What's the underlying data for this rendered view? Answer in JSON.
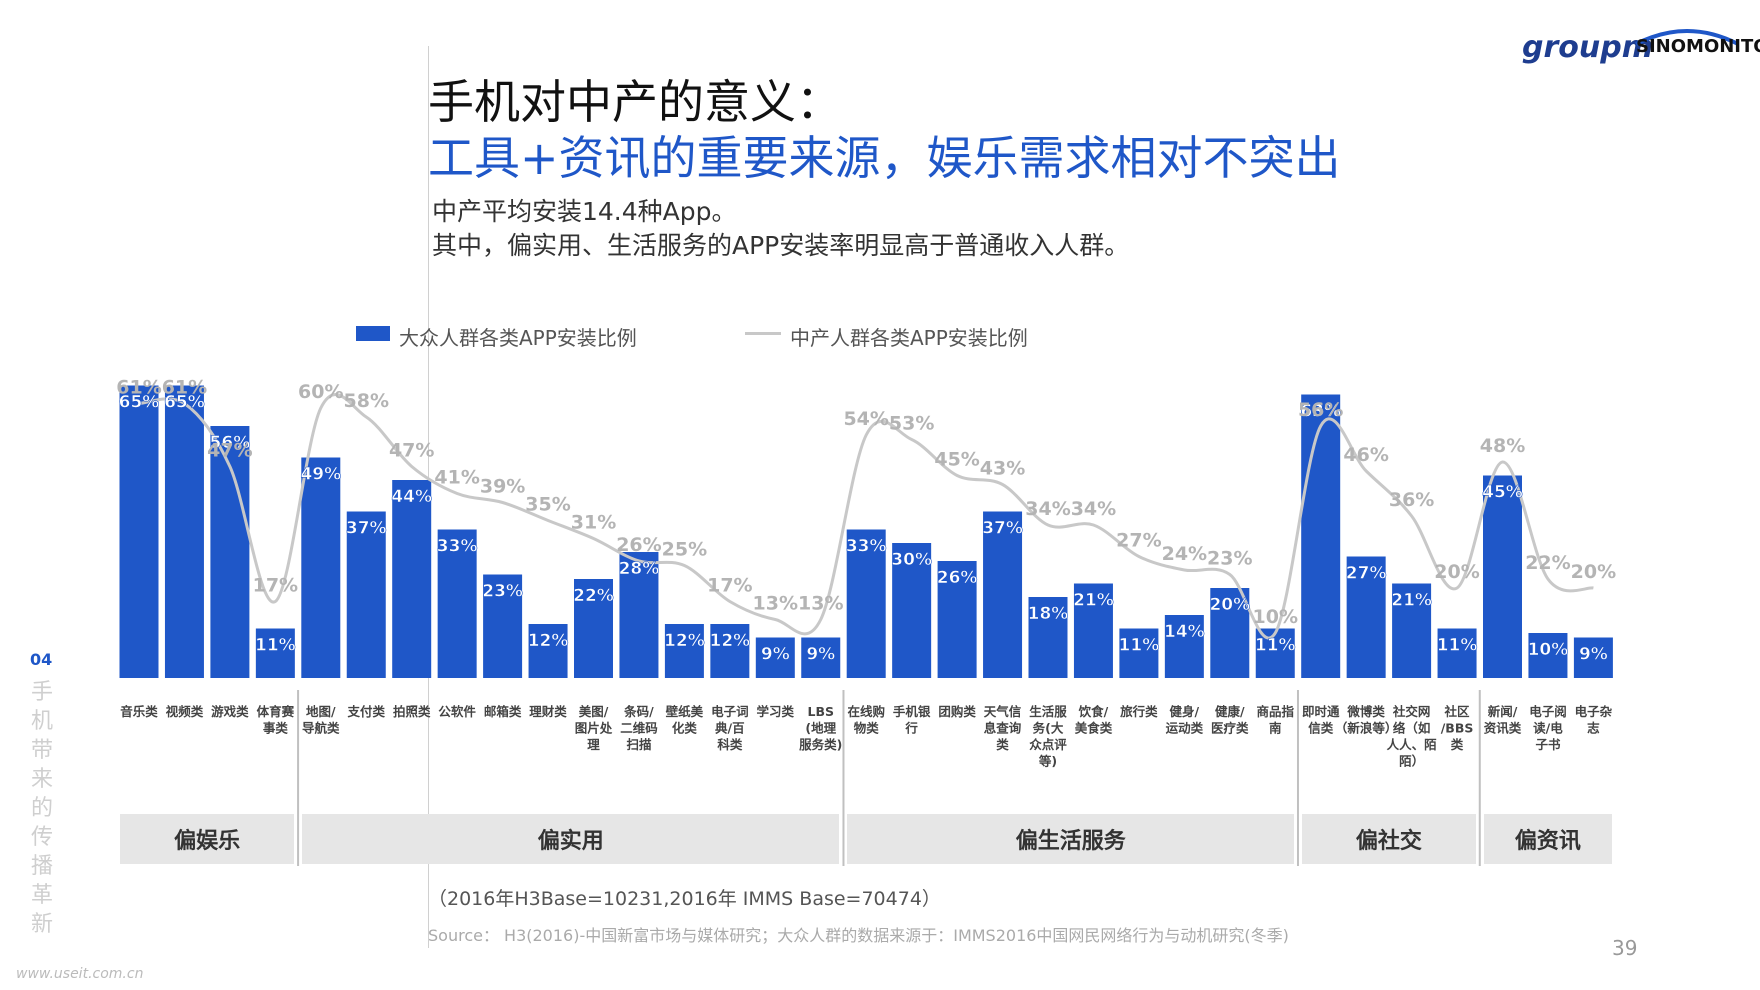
{
  "header": {
    "title_line1": "手机对中产的意义：",
    "title_line2": "工具+资讯的重要来源，娱乐需求相对不突出",
    "subtitle_line1": "中产平均安装14.4种App。",
    "subtitle_line2": "其中，偏实用、生活服务的APP安装率明显高于普通收入人群。",
    "logo_left": "groupm",
    "logo_right": "SINOMONITOR"
  },
  "side": {
    "number": "04",
    "text": "手机带来的传播革新"
  },
  "footer": {
    "base_note": "（2016年H3Base=10231,2016年 IMMS Base=70474）",
    "source_note": "Source： H3(2016)-中国新富市场与媒体研究；大众人群的数据来源于：IMMS2016中国网民网络行为与动机研究(冬季)",
    "page_number": "39",
    "watermark": "www.useit.com.cn"
  },
  "colors": {
    "bar": "#1f57c8",
    "line": "#c8c8c8",
    "title_blue": "#1f57c8",
    "group_box": "#e6e6e6"
  },
  "chart_data": {
    "type": "bar",
    "ylim": [
      0,
      70
    ],
    "grid": false,
    "legend_placement": "top-left",
    "categories": [
      "音乐类",
      "视频类",
      "游戏类",
      "体育赛事类",
      "地图/导航类",
      "支付类",
      "拍照类",
      "公软件",
      "邮箱类",
      "理财类",
      "美图/图片处理",
      "条码/二维码扫描",
      "壁纸美化类",
      "电子词典/百科类",
      "学习类",
      "LBS（地理服务类）",
      "在线购物类",
      "手机银行",
      "团购类",
      "天气信息查询类",
      "生活服务(大众点评等)",
      "饮食/美食类",
      "旅行类",
      "健身/运动类",
      "健康/医疗类",
      "商品指南",
      "即时通信类",
      "微博类（新浪等）",
      "社交网络（如人人、陌陌）",
      "社区/BBS类",
      "新闻/资讯类",
      "电子阅读/电子书",
      "电子杂志"
    ],
    "category_lines": [
      [
        "音乐类"
      ],
      [
        "视频类"
      ],
      [
        "游戏类"
      ],
      [
        "体育赛",
        "事类"
      ],
      [
        "地图/",
        "导航类"
      ],
      [
        "支付类"
      ],
      [
        "拍照类"
      ],
      [
        "公软件"
      ],
      [
        "邮箱类"
      ],
      [
        "理财类"
      ],
      [
        "美图/",
        "图片处",
        "理"
      ],
      [
        "条码/",
        "二维码",
        "扫描"
      ],
      [
        "壁纸美",
        "化类"
      ],
      [
        "电子词",
        "典/百",
        "科类"
      ],
      [
        "学习类"
      ],
      [
        "LBS",
        "(地理",
        "服务类)"
      ],
      [
        "在线购",
        "物类"
      ],
      [
        "手机银",
        "行"
      ],
      [
        "团购类"
      ],
      [
        "天气信",
        "息查询",
        "类"
      ],
      [
        "生活服",
        "务(大",
        "众点评",
        "等)"
      ],
      [
        "饮食/",
        "美食类"
      ],
      [
        "旅行类"
      ],
      [
        "健身/",
        "运动类"
      ],
      [
        "健康/",
        "医疗类"
      ],
      [
        "商品指",
        "南"
      ],
      [
        "即时通",
        "信类"
      ],
      [
        "微博类",
        "（新浪等）"
      ],
      [
        "社交网",
        "络（如",
        "人人、陌",
        "陌）"
      ],
      [
        "社区",
        "/BBS",
        "类"
      ],
      [
        "新闻/",
        "资讯类"
      ],
      [
        "电子阅",
        "读/电",
        "子书"
      ],
      [
        "电子杂",
        "志"
      ]
    ],
    "series": [
      {
        "name": "大众人群各类APP安装比例",
        "values": [
          65,
          65,
          56,
          11,
          49,
          37,
          44,
          33,
          23,
          12,
          22,
          28,
          12,
          12,
          9,
          9,
          33,
          30,
          26,
          37,
          18,
          21,
          11,
          14,
          20,
          11,
          63,
          27,
          21,
          11,
          45,
          10,
          9
        ]
      },
      {
        "name": "中产人群各类APP安装比例",
        "values": [
          61,
          61,
          47,
          17,
          60,
          58,
          47,
          41,
          39,
          35,
          31,
          26,
          25,
          17,
          13,
          13,
          54,
          53,
          45,
          43,
          34,
          34,
          27,
          24,
          23,
          10,
          56,
          46,
          36,
          20,
          48,
          22,
          20
        ]
      }
    ],
    "bar_labels": [
      "65%",
      "65%",
      "56%",
      "11%",
      "49%",
      "37%",
      "44%",
      "33%",
      "23%",
      "12%",
      "22%",
      "28%",
      "12%",
      "12%",
      "9%",
      "9%",
      "33%",
      "30%",
      "26%",
      "37%",
      "18%",
      "21%",
      "11%",
      "14%",
      "20%",
      "11%",
      "63%",
      "27%",
      "21%",
      "11%",
      "45%",
      "10%",
      "9%"
    ],
    "line_labels": [
      "61%",
      "61%",
      "47%",
      "17%",
      "60%",
      "58%",
      "47%",
      "41%",
      "39%",
      "35%",
      "31%",
      "26%",
      "25%",
      "17%",
      "13%",
      "13%",
      "54%",
      "53%",
      "45%",
      "43%",
      "34%",
      "34%",
      "27%",
      "24%",
      "23%",
      "10%",
      "56%",
      "46%",
      "36%",
      "20%",
      "48%",
      "22%",
      "20%"
    ],
    "groups": [
      {
        "label": "偏娱乐",
        "from": 0,
        "to": 3
      },
      {
        "label": "偏实用",
        "from": 4,
        "to": 15
      },
      {
        "label": "偏生活服务",
        "from": 16,
        "to": 25
      },
      {
        "label": "偏社交",
        "from": 26,
        "to": 29
      },
      {
        "label": "偏资讯",
        "from": 30,
        "to": 32
      }
    ]
  }
}
